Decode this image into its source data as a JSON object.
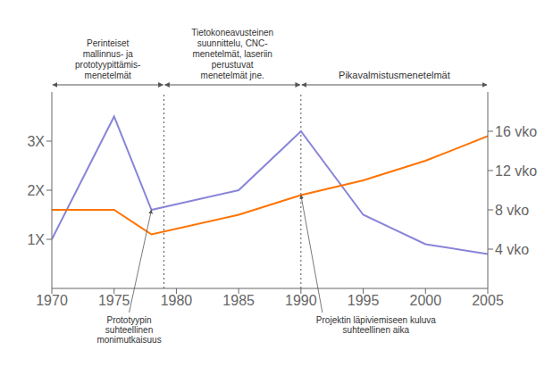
{
  "chart_data": {
    "type": "line",
    "x": [
      1970,
      1975,
      1978,
      1985,
      1990,
      1995,
      2000,
      2005
    ],
    "series": [
      {
        "color": "#8884d8",
        "values": [
          1.0,
          3.5,
          1.6,
          2.0,
          3.2,
          1.5,
          0.9,
          0.7
        ]
      },
      {
        "color": "#ff7300",
        "axis": "y2",
        "values": [
          8.0,
          8.0,
          5.5,
          7.5,
          9.5,
          11.0,
          13.0,
          15.5
        ]
      }
    ],
    "xlim": [
      1970,
      2005
    ],
    "xticks": [
      1970,
      1975,
      1980,
      1985,
      1990,
      1995,
      2000,
      2005
    ],
    "ylim": [
      0,
      4
    ],
    "yticks": [
      {
        "value": 1,
        "label": "1X"
      },
      {
        "value": 2,
        "label": "2X"
      },
      {
        "value": 3,
        "label": "3X"
      }
    ],
    "y2lim": [
      0,
      20
    ],
    "y2ticks": [
      {
        "value": 4,
        "label": "4 vko"
      },
      {
        "value": 8,
        "label": "8 vko"
      },
      {
        "value": 12,
        "label": "12 vko"
      },
      {
        "value": 16,
        "label": "16 vko"
      }
    ],
    "vlines": [
      1979,
      1990
    ],
    "eras": [
      "Perinteiset\nmallinnus- ja\nprototyypittämis-\nmenetelmät",
      "Tietokoneavusteinen\nsuunnittelu, CNC-\nmenetelmät, laseriin\nperustuvat\nmenetelmät jne.",
      "Pikavalmistusmenetelmät"
    ],
    "annotations": [
      {
        "text": "Prototyypin\nsuhteellinen\nmonimutkaisuus",
        "x": 1978,
        "y": 1.6
      },
      {
        "text": "Projektin läpiviemiseen kuluva\nsuhteellinen aika",
        "x": 1990,
        "y": 9.5,
        "axis": "y2"
      }
    ]
  }
}
